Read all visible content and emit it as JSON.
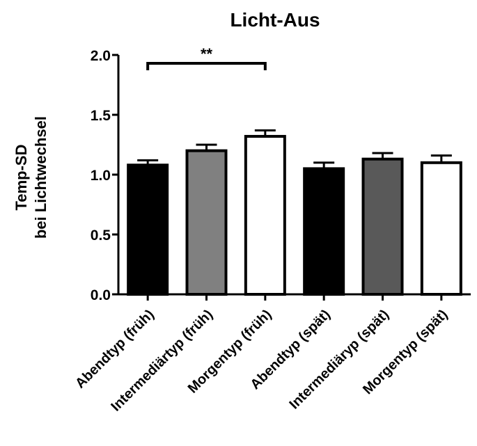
{
  "chart_data": {
    "type": "bar",
    "title": "Licht-Aus",
    "xlabel": "",
    "ylabel_lines": [
      "Temp-SD",
      "bei Lichtwechsel"
    ],
    "ylim": [
      0,
      2.0
    ],
    "yticks": [
      "0.0",
      "0.5",
      "1.0",
      "1.5",
      "2.0"
    ],
    "categories": [
      "Abendtyp (früh)",
      "Intermediärtyp (früh)",
      "Morgentyp (früh)",
      "Abendtyp (spät)",
      "Intermediäryp (spät)",
      "Morgentyp (spät)"
    ],
    "values": [
      1.08,
      1.2,
      1.32,
      1.05,
      1.13,
      1.1
    ],
    "errors": [
      0.04,
      0.05,
      0.05,
      0.05,
      0.05,
      0.06
    ],
    "bar_colors": [
      "#000000",
      "#808080",
      "#ffffff",
      "#000000",
      "#595959",
      "#ffffff"
    ],
    "significance": {
      "from": 0,
      "to": 2,
      "label": "**",
      "level": 1.93
    }
  }
}
